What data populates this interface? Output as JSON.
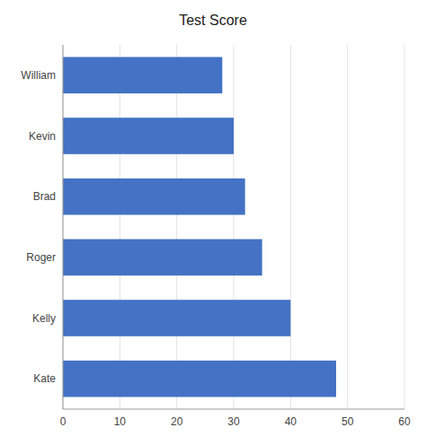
{
  "chart_data": {
    "type": "bar",
    "title": "Test Score",
    "orientation": "horizontal",
    "categories": [
      "Kate",
      "Kelly",
      "Roger",
      "Brad",
      "Kevin",
      "William"
    ],
    "values": [
      48,
      40,
      35,
      32,
      30,
      28
    ],
    "color": "#4472C4",
    "xlim": [
      0,
      60
    ],
    "xticks": [
      0,
      10,
      20,
      30,
      40,
      50,
      60
    ],
    "grid": true
  }
}
